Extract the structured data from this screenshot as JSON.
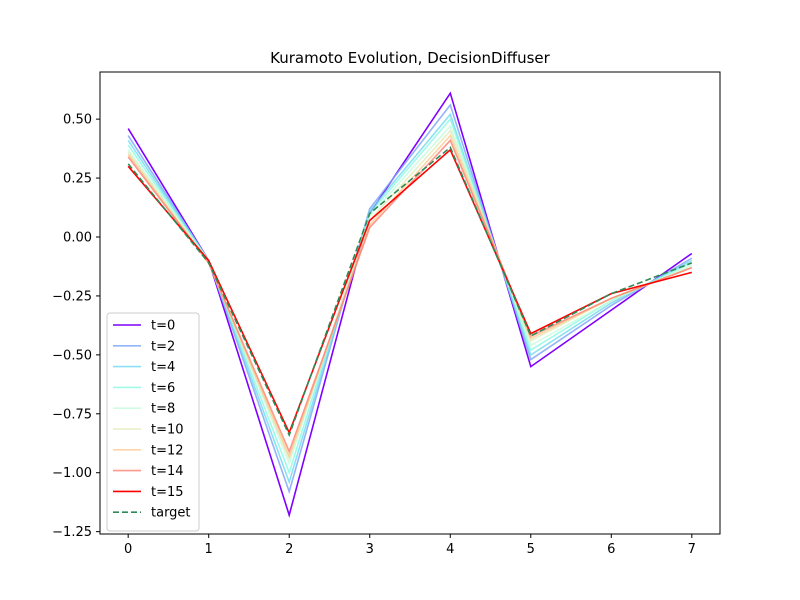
{
  "chart_data": {
    "type": "line",
    "title": "Kuramoto Evolution, DecisionDiffuser",
    "xlabel": "",
    "ylabel": "",
    "x": [
      0,
      1,
      2,
      3,
      4,
      5,
      6,
      7
    ],
    "xlim": [
      -0.35,
      7.35
    ],
    "ylim": [
      -1.26,
      0.7
    ],
    "xticks": [
      0,
      1,
      2,
      3,
      4,
      5,
      6,
      7
    ],
    "yticks": [
      0.5,
      0.25,
      0.0,
      -0.25,
      -0.5,
      -0.75,
      -1.0,
      -1.25
    ],
    "ytick_labels": [
      "0.50",
      "0.25",
      "0.00",
      "−0.25",
      "−0.50",
      "−0.75",
      "−1.00",
      "−1.25"
    ],
    "grid": false,
    "legend_position": "lower left",
    "series": [
      {
        "name": "t=0",
        "color": "#8000ff",
        "dashed": false,
        "opacity": 1.0,
        "values": [
          0.46,
          -0.1,
          -1.18,
          0.1,
          0.61,
          -0.55,
          -0.31,
          -0.07
        ]
      },
      {
        "name": "t=2",
        "color": "#80a8f8",
        "dashed": false,
        "opacity": 0.85,
        "values": [
          0.43,
          -0.1,
          -1.08,
          0.12,
          0.56,
          -0.52,
          -0.29,
          -0.09
        ]
      },
      {
        "name": "t=4",
        "color": "#6fd8f0",
        "dashed": false,
        "opacity": 0.8,
        "values": [
          0.41,
          -0.1,
          -1.04,
          0.11,
          0.52,
          -0.5,
          -0.28,
          -0.1
        ]
      },
      {
        "name": "t=6",
        "color": "#80f8e0",
        "dashed": false,
        "opacity": 0.75,
        "values": [
          0.39,
          -0.1,
          -1.0,
          0.1,
          0.5,
          -0.48,
          -0.27,
          -0.11
        ]
      },
      {
        "name": "t=8",
        "color": "#c0fbd8",
        "dashed": false,
        "opacity": 0.75,
        "values": [
          0.37,
          -0.1,
          -0.96,
          0.09,
          0.47,
          -0.46,
          -0.27,
          -0.12
        ]
      },
      {
        "name": "t=10",
        "color": "#e0e8b0",
        "dashed": false,
        "opacity": 0.75,
        "values": [
          0.36,
          -0.11,
          -0.94,
          0.07,
          0.45,
          -0.44,
          -0.26,
          -0.13
        ]
      },
      {
        "name": "t=12",
        "color": "#ffc890",
        "dashed": false,
        "opacity": 0.8,
        "values": [
          0.35,
          -0.11,
          -0.93,
          0.05,
          0.43,
          -0.43,
          -0.26,
          -0.13
        ]
      },
      {
        "name": "t=14",
        "color": "#ff8070",
        "dashed": false,
        "opacity": 0.8,
        "values": [
          0.34,
          -0.11,
          -0.91,
          0.04,
          0.41,
          -0.42,
          -0.26,
          -0.13
        ]
      },
      {
        "name": "t=15",
        "color": "#ff0000",
        "dashed": false,
        "opacity": 1.0,
        "values": [
          0.3,
          -0.1,
          -0.83,
          0.07,
          0.37,
          -0.41,
          -0.24,
          -0.15
        ]
      },
      {
        "name": "target",
        "color": "#2e8b57",
        "dashed": true,
        "opacity": 1.0,
        "values": [
          0.31,
          -0.11,
          -0.84,
          0.1,
          0.38,
          -0.42,
          -0.24,
          -0.11
        ]
      }
    ]
  }
}
